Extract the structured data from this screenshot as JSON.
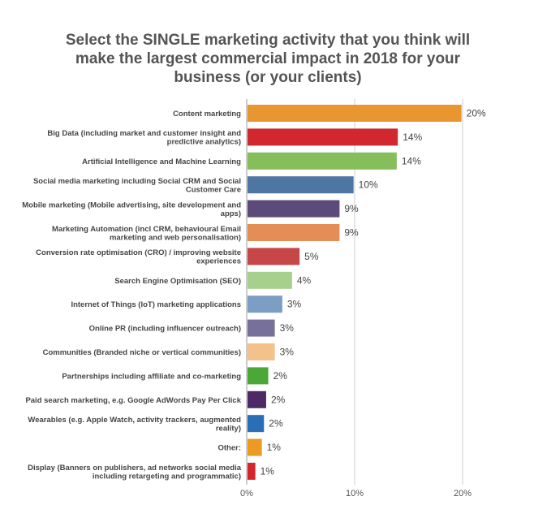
{
  "chart_data": {
    "type": "bar",
    "orientation": "horizontal",
    "title": "Select the SINGLE marketing activity that you think will make the largest commercial impact in 2018 for your business (or your clients)",
    "categories": [
      [
        "Content marketing"
      ],
      [
        "Big Data (including market and customer insight and",
        "predictive analytics)"
      ],
      [
        "Artificial Intelligence and Machine Learning"
      ],
      [
        "Social media marketing including Social CRM and Social",
        "Customer Care"
      ],
      [
        "Mobile marketing (Mobile advertising, site development and",
        "apps)"
      ],
      [
        "Marketing Automation (incl CRM, behavioural Email",
        "marketing and web personalisation)"
      ],
      [
        "Conversion rate optimisation (CRO) / improving website",
        "experiences"
      ],
      [
        "Search Engine Optimisation (SEO)"
      ],
      [
        "Internet of Things (IoT) marketing applications"
      ],
      [
        "Online PR (including influencer outreach)"
      ],
      [
        "Communities (Branded niche or vertical communities)"
      ],
      [
        "Partnerships including affiliate and co-marketing"
      ],
      [
        "Paid search marketing, e.g. Google AdWords Pay Per Click"
      ],
      [
        "Wearables (e.g. Apple Watch, activity trackers, augmented",
        "reality)"
      ],
      [
        "Other:"
      ],
      [
        "Display (Banners on publishers, ad networks social media",
        "including retargeting and programmatic)"
      ]
    ],
    "values": [
      19.9,
      14.0,
      13.9,
      9.9,
      8.6,
      8.6,
      4.9,
      4.2,
      3.3,
      2.6,
      2.6,
      2.0,
      1.8,
      1.6,
      1.4,
      0.8
    ],
    "value_labels": [
      "20%",
      "14%",
      "14%",
      "10%",
      "9%",
      "9%",
      "5%",
      "4%",
      "3%",
      "3%",
      "3%",
      "2%",
      "2%",
      "2%",
      "1%",
      "1%"
    ],
    "colors": [
      "#E8962F",
      "#D0282E",
      "#86BE5B",
      "#4E76A3",
      "#5B4A7A",
      "#E58D57",
      "#C74748",
      "#A8D08D",
      "#7C9DC4",
      "#77709B",
      "#F2C28A",
      "#4CA836",
      "#4D2A66",
      "#2A6EB5",
      "#ED9A24",
      "#D6262C"
    ],
    "xlim": [
      0,
      20
    ],
    "x_ticks": [
      0,
      10,
      20
    ],
    "x_tick_labels": [
      "0%",
      "10%",
      "20%"
    ],
    "grid": true
  }
}
